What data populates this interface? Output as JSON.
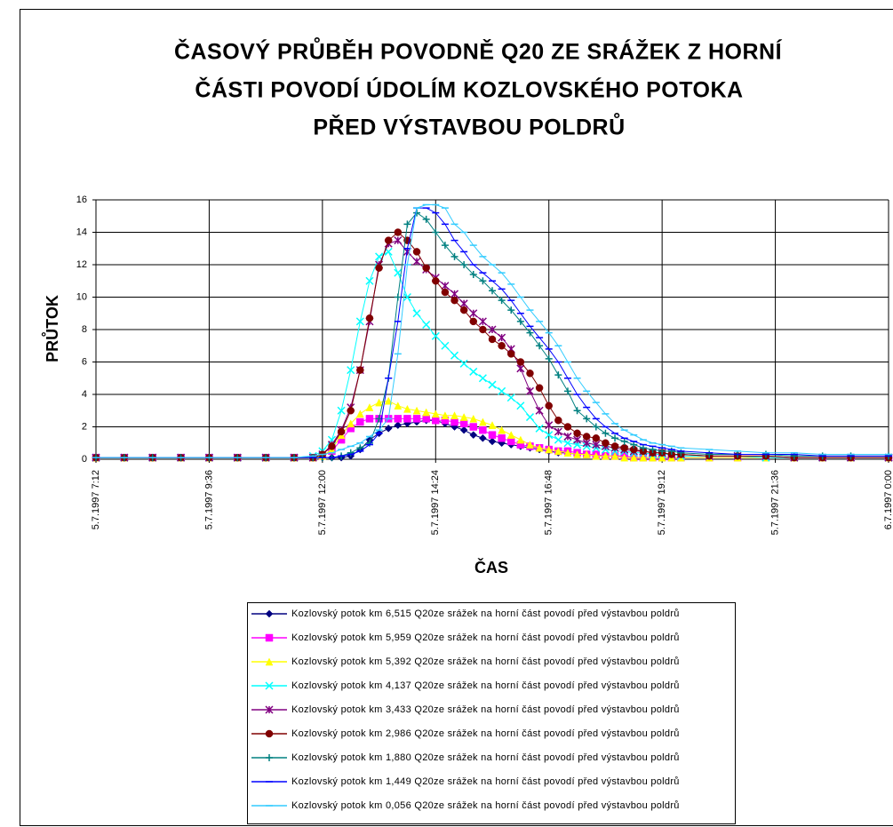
{
  "chart_data": {
    "type": "line",
    "title": [
      "ČASOVÝ PRŮBĚH POVODNĚ Q20 ZE SRÁŽEK Z HORNÍ",
      "ČÁSTI POVODÍ ÚDOLÍM KOZLOVSKÉHO POTOKA",
      "PŘED VÝSTAVBOU POLDRŮ"
    ],
    "x_label": "ČAS",
    "y_label": "PRŮTOK",
    "xlim": [
      7.2,
      24
    ],
    "ylim": [
      0,
      16
    ],
    "xticks": [
      {
        "value": 7.2,
        "label": "5.7.1997 7:12"
      },
      {
        "value": 9.6,
        "label": "5.7.1997 9:36"
      },
      {
        "value": 12,
        "label": "5.7.1997 12:00"
      },
      {
        "value": 14.4,
        "label": "5.7.1997 14:24"
      },
      {
        "value": 16.8,
        "label": "5.7.1997 16:48"
      },
      {
        "value": 19.2,
        "label": "5.7.1997 19:12"
      },
      {
        "value": 21.6,
        "label": "5.7.1997 21:36"
      },
      {
        "value": 24,
        "label": "6.7.1997 0:00"
      }
    ],
    "yticks": [
      0,
      2,
      4,
      6,
      8,
      10,
      12,
      14,
      16
    ],
    "grid": true,
    "legend": "bottom",
    "x": [
      7.2,
      7.8,
      8.4,
      9.0,
      9.6,
      10.2,
      10.8,
      11.4,
      11.8,
      12.0,
      12.2,
      12.4,
      12.6,
      12.8,
      13.0,
      13.2,
      13.4,
      13.6,
      13.8,
      14.0,
      14.2,
      14.4,
      14.6,
      14.8,
      15.0,
      15.2,
      15.4,
      15.6,
      15.8,
      16.0,
      16.2,
      16.4,
      16.6,
      16.8,
      17.0,
      17.2,
      17.4,
      17.6,
      17.8,
      18.0,
      18.2,
      18.4,
      18.6,
      18.8,
      19.0,
      19.2,
      19.4,
      19.6,
      20.2,
      20.8,
      21.4,
      22.0,
      22.6,
      23.2,
      24.0
    ],
    "series": [
      {
        "name": "Kozlovský potok km 6,515 Q20ze srážek na horní část povodí před výstavbou poldrů",
        "color": "#000080",
        "marker": "diamond",
        "values": [
          0.1,
          0.1,
          0.1,
          0.1,
          0.1,
          0.1,
          0.1,
          0.1,
          0.1,
          0.1,
          0.1,
          0.1,
          0.2,
          0.6,
          1.2,
          1.6,
          1.9,
          2.1,
          2.2,
          2.3,
          2.4,
          2.4,
          2.2,
          2.0,
          1.8,
          1.5,
          1.3,
          1.1,
          1.0,
          0.9,
          0.8,
          0.7,
          0.6,
          0.5,
          0.4,
          0.4,
          0.3,
          0.3,
          0.2,
          0.2,
          0.2,
          0.2,
          0.1,
          0.1,
          0.1,
          0.1,
          0.1,
          0.1,
          0.1,
          0.1,
          0.1,
          0.1,
          0.1,
          0.1,
          0.1
        ]
      },
      {
        "name": "Kozlovský potok km 5,959 Q20ze srážek na horní část povodí před výstavbou poldrů",
        "color": "#ff00ff",
        "marker": "square",
        "values": [
          0.1,
          0.1,
          0.1,
          0.1,
          0.1,
          0.1,
          0.1,
          0.1,
          0.1,
          0.2,
          0.5,
          1.2,
          1.9,
          2.3,
          2.5,
          2.5,
          2.5,
          2.5,
          2.5,
          2.5,
          2.5,
          2.4,
          2.4,
          2.3,
          2.2,
          2.0,
          1.8,
          1.5,
          1.3,
          1.1,
          0.9,
          0.8,
          0.7,
          0.6,
          0.5,
          0.5,
          0.4,
          0.3,
          0.3,
          0.2,
          0.2,
          0.2,
          0.1,
          0.1,
          0.1,
          0.1,
          0.1,
          0.1,
          0.1,
          0.1,
          0.1,
          0.1,
          0.1,
          0.1,
          0.1
        ]
      },
      {
        "name": "Kozlovský potok km 5,392 Q20ze srážek na horní část povodí před výstavbou poldrů",
        "color": "#ffff00",
        "marker": "triangle",
        "values": [
          0.1,
          0.1,
          0.1,
          0.1,
          0.1,
          0.1,
          0.1,
          0.1,
          0.1,
          0.2,
          0.6,
          1.5,
          2.2,
          2.8,
          3.2,
          3.5,
          3.6,
          3.3,
          3.1,
          3.0,
          2.9,
          2.8,
          2.7,
          2.7,
          2.6,
          2.5,
          2.3,
          2.1,
          1.8,
          1.5,
          1.2,
          0.9,
          0.7,
          0.6,
          0.5,
          0.4,
          0.3,
          0.3,
          0.2,
          0.2,
          0.2,
          0.1,
          0.1,
          0.1,
          0.1,
          0.1,
          0.1,
          0.1,
          0.1,
          0.1,
          0.1,
          0.1,
          0.1,
          0.1,
          0.1
        ]
      },
      {
        "name": "Kozlovský potok km 4,137 Q20ze srážek na horní část povodí před výstavbou poldrů",
        "color": "#00ffff",
        "marker": "x",
        "values": [
          0.1,
          0.1,
          0.1,
          0.1,
          0.1,
          0.1,
          0.1,
          0.1,
          0.2,
          0.5,
          1.2,
          3.0,
          5.5,
          8.5,
          11.0,
          12.5,
          12.8,
          11.5,
          10.0,
          9.0,
          8.3,
          7.6,
          7.0,
          6.4,
          5.9,
          5.4,
          5.0,
          4.6,
          4.2,
          3.8,
          3.3,
          2.6,
          1.9,
          1.5,
          1.2,
          1.0,
          0.9,
          0.8,
          0.7,
          0.6,
          0.5,
          0.5,
          0.4,
          0.4,
          0.3,
          0.3,
          0.3,
          0.2,
          0.2,
          0.2,
          0.1,
          0.1,
          0.1,
          0.1,
          0.1
        ]
      },
      {
        "name": "Kozlovský potok km 3,433 Q20ze srážek na horní část povodí před výstavbou poldrů",
        "color": "#800080",
        "marker": "star",
        "values": [
          0.1,
          0.1,
          0.1,
          0.1,
          0.1,
          0.1,
          0.1,
          0.1,
          0.1,
          0.3,
          0.9,
          1.8,
          3.2,
          5.5,
          8.5,
          12.0,
          13.3,
          13.5,
          12.8,
          12.2,
          11.7,
          11.2,
          10.7,
          10.2,
          9.6,
          9.0,
          8.5,
          8.0,
          7.5,
          6.8,
          5.6,
          4.2,
          3.0,
          2.1,
          1.7,
          1.4,
          1.2,
          1.0,
          0.9,
          0.8,
          0.7,
          0.6,
          0.5,
          0.5,
          0.4,
          0.4,
          0.3,
          0.3,
          0.2,
          0.2,
          0.2,
          0.1,
          0.1,
          0.1,
          0.1
        ]
      },
      {
        "name": "Kozlovský potok km 2,986 Q20ze srážek na horní část povodí před výstavbou poldrů",
        "color": "#800000",
        "marker": "circle",
        "values": [
          0.1,
          0.1,
          0.1,
          0.1,
          0.1,
          0.1,
          0.1,
          0.1,
          0.1,
          0.3,
          0.8,
          1.7,
          3.0,
          5.5,
          8.7,
          11.8,
          13.5,
          14.0,
          13.5,
          12.8,
          11.8,
          11.0,
          10.3,
          9.8,
          9.2,
          8.5,
          8.0,
          7.4,
          7.0,
          6.5,
          6.0,
          5.3,
          4.4,
          3.3,
          2.4,
          2.0,
          1.6,
          1.4,
          1.3,
          1.0,
          0.8,
          0.7,
          0.6,
          0.5,
          0.4,
          0.4,
          0.3,
          0.3,
          0.2,
          0.2,
          0.2,
          0.1,
          0.1,
          0.1,
          0.1
        ]
      },
      {
        "name": "Kozlovský potok km 1,880 Q20ze srážek na horní část povodí před výstavbou poldrů",
        "color": "#008080",
        "marker": "plus",
        "values": [
          0.1,
          0.1,
          0.1,
          0.1,
          0.1,
          0.1,
          0.1,
          0.1,
          0.1,
          0.1,
          0.1,
          0.2,
          0.4,
          0.7,
          1.0,
          2.5,
          5.0,
          10.0,
          14.5,
          15.2,
          14.8,
          14.0,
          13.2,
          12.5,
          12.0,
          11.4,
          11.0,
          10.4,
          9.8,
          9.2,
          8.5,
          7.8,
          7.0,
          6.2,
          5.2,
          4.2,
          3.0,
          2.5,
          2.0,
          1.6,
          1.3,
          1.1,
          0.9,
          0.7,
          0.6,
          0.5,
          0.5,
          0.4,
          0.3,
          0.3,
          0.3,
          0.2,
          0.2,
          0.2,
          0.2
        ]
      },
      {
        "name": "Kozlovský potok km 1,449 Q20ze srážek na horní část povodí před výstavbou poldrů",
        "color": "#0000ff",
        "marker": "dash",
        "values": [
          0.1,
          0.1,
          0.1,
          0.1,
          0.1,
          0.1,
          0.1,
          0.1,
          0.1,
          0.1,
          0.1,
          0.2,
          0.3,
          0.5,
          0.9,
          1.6,
          5.0,
          8.5,
          13.0,
          15.5,
          15.5,
          15.2,
          14.5,
          13.5,
          12.8,
          12.0,
          11.5,
          11.0,
          10.5,
          9.8,
          9.0,
          8.2,
          7.5,
          6.8,
          6.0,
          5.0,
          4.0,
          3.2,
          2.5,
          2.0,
          1.6,
          1.3,
          1.1,
          0.9,
          0.8,
          0.7,
          0.6,
          0.5,
          0.4,
          0.3,
          0.3,
          0.3,
          0.2,
          0.2,
          0.2
        ]
      },
      {
        "name": "Kozlovský potok km 0,056 Q20ze srážek na horní část povodí před výstavbou poldrů",
        "color": "#33ccff",
        "marker": "dash",
        "values": [
          0.1,
          0.1,
          0.1,
          0.1,
          0.1,
          0.1,
          0.1,
          0.1,
          0.2,
          0.3,
          0.4,
          0.6,
          0.8,
          1.0,
          1.4,
          1.8,
          2.5,
          6.5,
          12.0,
          15.5,
          15.7,
          15.7,
          15.5,
          14.5,
          14.0,
          13.2,
          12.5,
          12.0,
          11.5,
          10.8,
          10.0,
          9.2,
          8.5,
          7.8,
          7.0,
          6.0,
          5.0,
          4.2,
          3.5,
          2.8,
          2.2,
          1.8,
          1.5,
          1.2,
          1.0,
          0.9,
          0.8,
          0.7,
          0.6,
          0.5,
          0.4,
          0.4,
          0.3,
          0.3,
          0.3
        ]
      }
    ]
  }
}
